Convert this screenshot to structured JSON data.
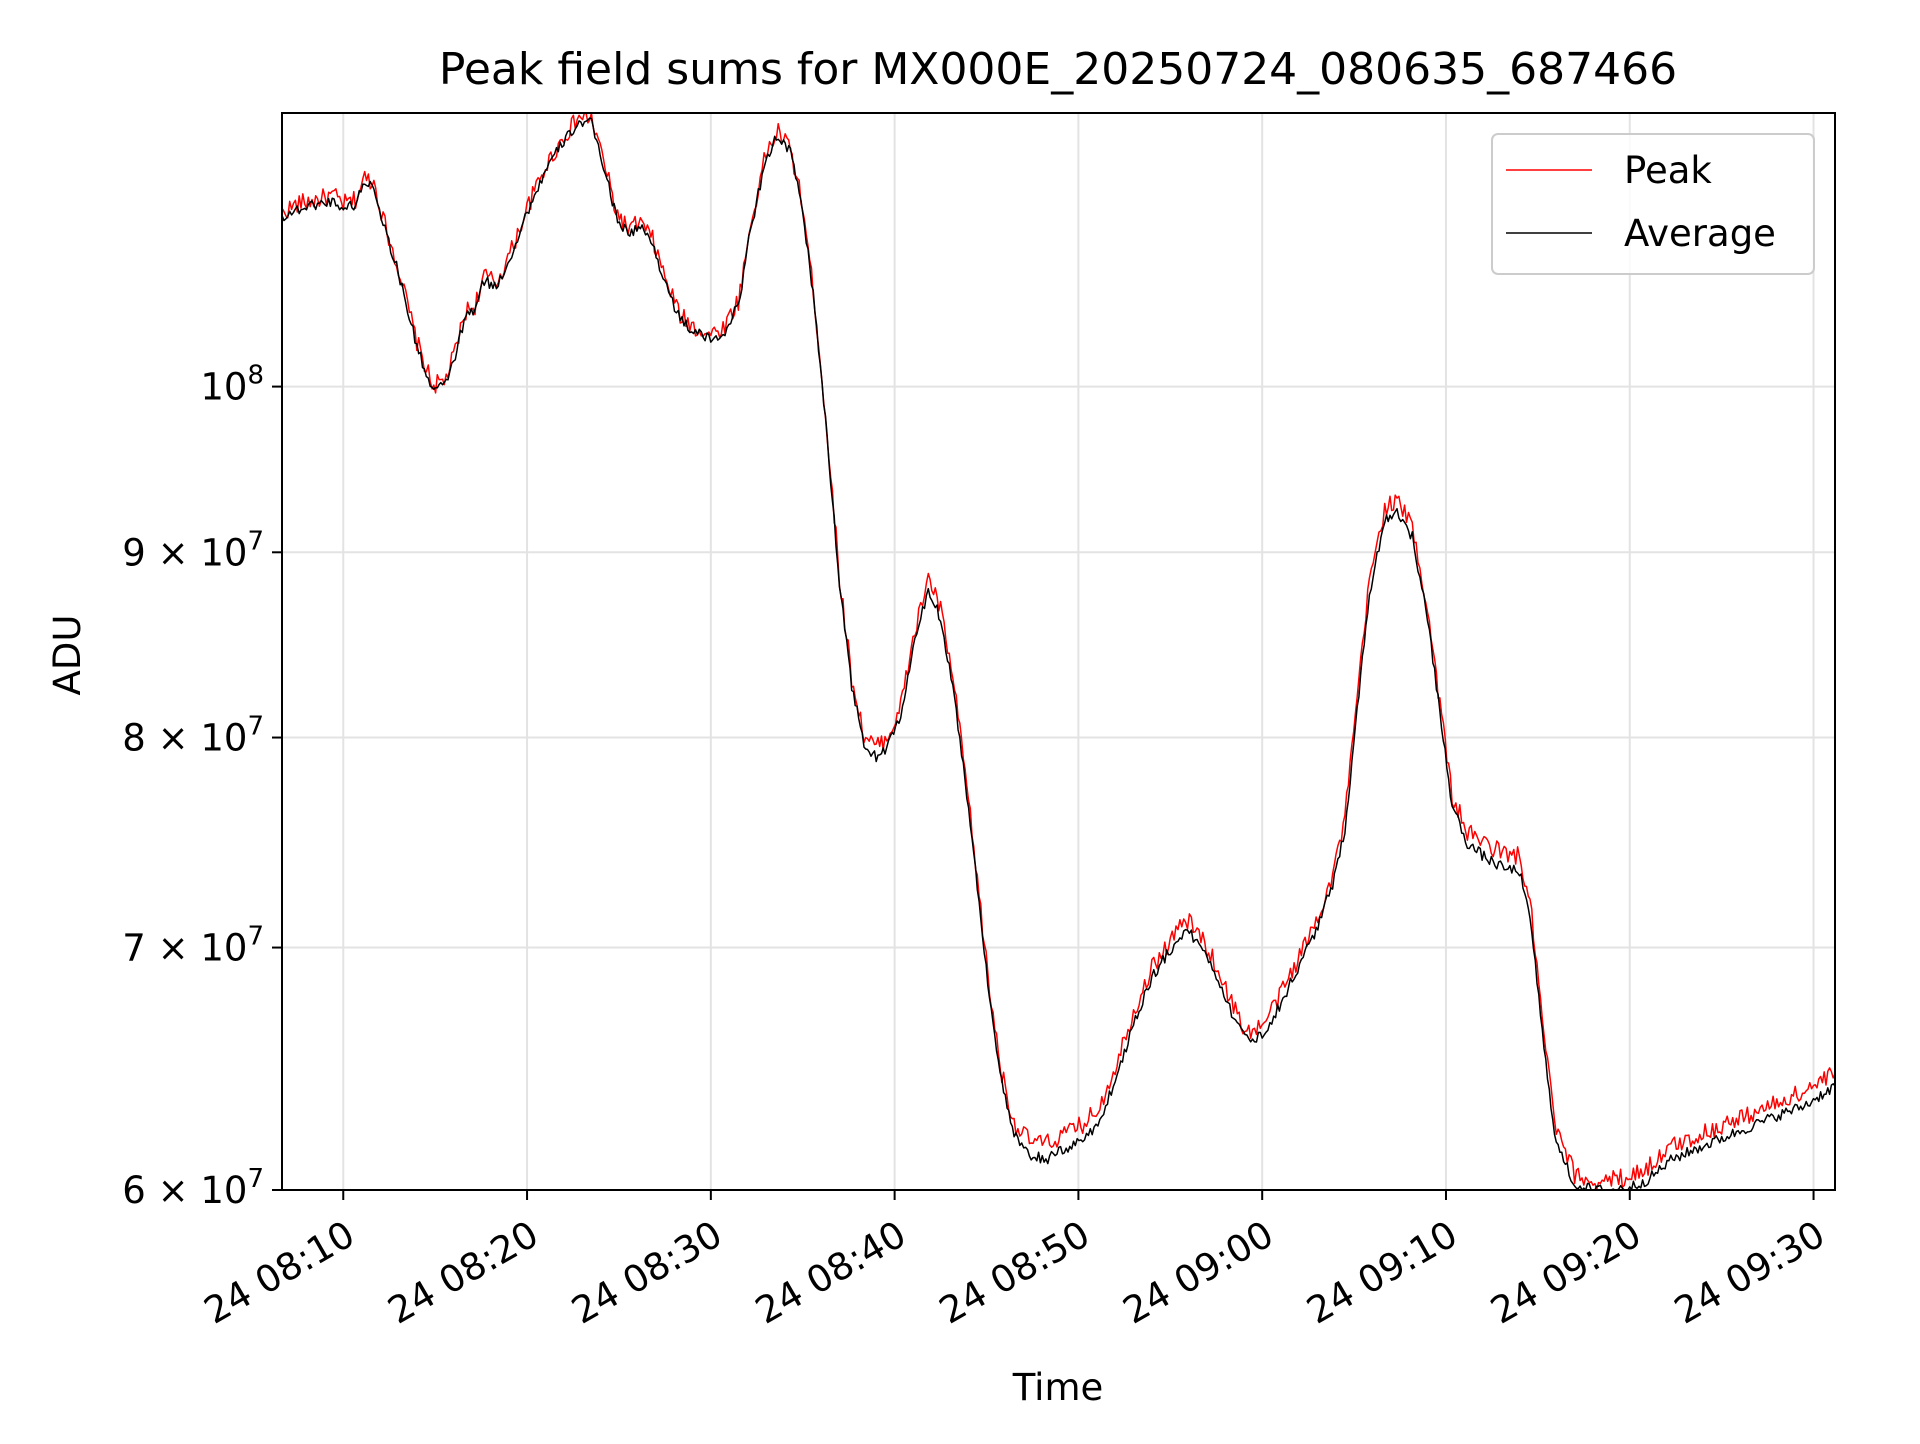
{
  "chart_data": {
    "type": "line",
    "title": "Peak field sums for MX000E_20250724_080635_687466",
    "xlabel": "Time",
    "ylabel": "ADU",
    "yscale": "log",
    "grid": true,
    "legend_position": "top-right",
    "xlim": [
      "2025-07-24 08:06:40",
      "2025-07-24 09:31:10"
    ],
    "ylim": [
      60000000,
      119000000
    ],
    "x_ticks": [
      "2025-07-24 08:10",
      "2025-07-24 08:20",
      "2025-07-24 08:30",
      "2025-07-24 08:40",
      "2025-07-24 08:50",
      "2025-07-24 09:00",
      "2025-07-24 09:10",
      "2025-07-24 09:20",
      "2025-07-24 09:30"
    ],
    "x_tick_labels": [
      "24 08:10",
      "24 08:20",
      "24 08:30",
      "24 08:40",
      "24 08:50",
      "24 09:00",
      "24 09:10",
      "24 09:20",
      "24 09:30"
    ],
    "y_ticks": [
      60000000,
      70000000,
      80000000,
      90000000,
      100000000
    ],
    "y_tick_labels": [
      {
        "base": "6 × 10",
        "exp": "7"
      },
      {
        "base": "7 × 10",
        "exp": "7"
      },
      {
        "base": "8 × 10",
        "exp": "7"
      },
      {
        "base": "9 × 10",
        "exp": "7"
      },
      {
        "base": "10",
        "exp": "8"
      }
    ],
    "series": [
      {
        "name": "Peak",
        "color": "#ff0000",
        "jitter": 0.006,
        "points": [
          [
            "2025-07-24 08:06:40",
            111700000
          ],
          [
            "2025-07-24 08:07:30",
            112300000
          ],
          [
            "2025-07-24 08:08:30",
            112600000
          ],
          [
            "2025-07-24 08:09:30",
            112900000
          ],
          [
            "2025-07-24 08:10:00",
            112300000
          ],
          [
            "2025-07-24 08:10:40",
            112600000
          ],
          [
            "2025-07-24 08:11:10",
            114200000
          ],
          [
            "2025-07-24 08:11:40",
            113900000
          ],
          [
            "2025-07-24 08:12:10",
            111300000
          ],
          [
            "2025-07-24 08:13:00",
            107800000
          ],
          [
            "2025-07-24 08:14:00",
            102900000
          ],
          [
            "2025-07-24 08:14:50",
            100100000
          ],
          [
            "2025-07-24 08:15:30",
            100300000
          ],
          [
            "2025-07-24 08:16:00",
            101900000
          ],
          [
            "2025-07-24 08:16:40",
            104900000
          ],
          [
            "2025-07-24 08:17:10",
            105300000
          ],
          [
            "2025-07-24 08:17:40",
            107300000
          ],
          [
            "2025-07-24 08:18:20",
            106800000
          ],
          [
            "2025-07-24 08:19:10",
            109100000
          ],
          [
            "2025-07-24 08:20:00",
            112000000
          ],
          [
            "2025-07-24 08:21:00",
            115000000
          ],
          [
            "2025-07-24 08:22:00",
            117200000
          ],
          [
            "2025-07-24 08:22:50",
            118700000
          ],
          [
            "2025-07-24 08:23:30",
            118600000
          ],
          [
            "2025-07-24 08:24:10",
            115500000
          ],
          [
            "2025-07-24 08:24:50",
            111800000
          ],
          [
            "2025-07-24 08:25:30",
            110500000
          ],
          [
            "2025-07-24 08:26:10",
            111000000
          ],
          [
            "2025-07-24 08:26:50",
            109800000
          ],
          [
            "2025-07-24 08:27:30",
            107200000
          ],
          [
            "2025-07-24 08:28:20",
            104600000
          ],
          [
            "2025-07-24 08:29:10",
            103800000
          ],
          [
            "2025-07-24 08:30:00",
            103400000
          ],
          [
            "2025-07-24 08:30:40",
            103800000
          ],
          [
            "2025-07-24 08:31:30",
            105600000
          ],
          [
            "2025-07-24 08:32:10",
            110800000
          ],
          [
            "2025-07-24 08:33:00",
            116000000
          ],
          [
            "2025-07-24 08:33:40",
            117600000
          ],
          [
            "2025-07-24 08:34:20",
            116300000
          ],
          [
            "2025-07-24 08:35:00",
            112200000
          ],
          [
            "2025-07-24 08:35:40",
            105300000
          ],
          [
            "2025-07-24 08:36:20",
            97000000
          ],
          [
            "2025-07-24 08:37:00",
            88600000
          ],
          [
            "2025-07-24 08:37:40",
            83100000
          ],
          [
            "2025-07-24 08:38:20",
            80100000
          ],
          [
            "2025-07-24 08:39:00",
            79500000
          ],
          [
            "2025-07-24 08:39:40",
            80100000
          ],
          [
            "2025-07-24 08:40:20",
            81600000
          ],
          [
            "2025-07-24 08:41:00",
            85100000
          ],
          [
            "2025-07-24 08:41:50",
            88600000
          ],
          [
            "2025-07-24 08:42:30",
            86800000
          ],
          [
            "2025-07-24 08:43:10",
            83100000
          ],
          [
            "2025-07-24 08:43:50",
            78300000
          ],
          [
            "2025-07-24 08:44:30",
            73100000
          ],
          [
            "2025-07-24 08:45:10",
            68100000
          ],
          [
            "2025-07-24 08:45:50",
            64600000
          ],
          [
            "2025-07-24 08:46:30",
            62600000
          ],
          [
            "2025-07-24 08:47:20",
            61900000
          ],
          [
            "2025-07-24 08:48:20",
            61800000
          ],
          [
            "2025-07-24 08:49:20",
            62200000
          ],
          [
            "2025-07-24 08:50:20",
            62600000
          ],
          [
            "2025-07-24 08:51:10",
            63300000
          ],
          [
            "2025-07-24 08:52:00",
            64900000
          ],
          [
            "2025-07-24 08:53:00",
            67200000
          ],
          [
            "2025-07-24 08:54:00",
            69100000
          ],
          [
            "2025-07-24 08:55:00",
            70300000
          ],
          [
            "2025-07-24 08:55:50",
            71300000
          ],
          [
            "2025-07-24 08:56:40",
            70500000
          ],
          [
            "2025-07-24 08:57:30",
            69200000
          ],
          [
            "2025-07-24 08:58:20",
            67600000
          ],
          [
            "2025-07-24 08:59:10",
            66300000
          ],
          [
            "2025-07-24 09:00:00",
            66600000
          ],
          [
            "2025-07-24 09:00:50",
            67700000
          ],
          [
            "2025-07-24 09:01:50",
            69300000
          ],
          [
            "2025-07-24 09:02:50",
            71000000
          ],
          [
            "2025-07-24 09:03:50",
            73300000
          ],
          [
            "2025-07-24 09:04:30",
            76000000
          ],
          [
            "2025-07-24 09:05:10",
            82000000
          ],
          [
            "2025-07-24 09:05:50",
            88400000
          ],
          [
            "2025-07-24 09:06:40",
            92600000
          ],
          [
            "2025-07-24 09:07:20",
            93000000
          ],
          [
            "2025-07-24 09:08:10",
            91500000
          ],
          [
            "2025-07-24 09:09:00",
            86800000
          ],
          [
            "2025-07-24 09:09:40",
            81800000
          ],
          [
            "2025-07-24 09:10:20",
            77100000
          ],
          [
            "2025-07-24 09:11:10",
            75300000
          ],
          [
            "2025-07-24 09:12:10",
            74800000
          ],
          [
            "2025-07-24 09:13:10",
            74300000
          ],
          [
            "2025-07-24 09:14:00",
            74200000
          ],
          [
            "2025-07-24 09:14:40",
            71400000
          ],
          [
            "2025-07-24 09:15:20",
            66100000
          ],
          [
            "2025-07-24 09:16:00",
            62300000
          ],
          [
            "2025-07-24 09:17:00",
            60600000
          ],
          [
            "2025-07-24 09:18:00",
            60300000
          ],
          [
            "2025-07-24 09:19:00",
            60400000
          ],
          [
            "2025-07-24 09:20:00",
            60500000
          ],
          [
            "2025-07-24 09:21:00",
            60900000
          ],
          [
            "2025-07-24 09:22:20",
            61700000
          ],
          [
            "2025-07-24 09:24:00",
            62200000
          ],
          [
            "2025-07-24 09:26:00",
            62800000
          ],
          [
            "2025-07-24 09:28:00",
            63400000
          ],
          [
            "2025-07-24 09:29:30",
            63900000
          ],
          [
            "2025-07-24 09:31:10",
            64600000
          ]
        ]
      },
      {
        "name": "Average",
        "color": "#000000",
        "jitter": 0.0035,
        "points": [
          [
            "2025-07-24 08:06:40",
            111400000
          ],
          [
            "2025-07-24 08:07:30",
            111900000
          ],
          [
            "2025-07-24 08:08:30",
            112300000
          ],
          [
            "2025-07-24 08:09:30",
            112500000
          ],
          [
            "2025-07-24 08:10:00",
            112000000
          ],
          [
            "2025-07-24 08:10:40",
            112300000
          ],
          [
            "2025-07-24 08:11:10",
            113900000
          ],
          [
            "2025-07-24 08:11:40",
            113600000
          ],
          [
            "2025-07-24 08:12:10",
            111000000
          ],
          [
            "2025-07-24 08:13:00",
            107500000
          ],
          [
            "2025-07-24 08:14:00",
            102600000
          ],
          [
            "2025-07-24 08:14:50",
            99800000
          ],
          [
            "2025-07-24 08:15:30",
            100000000
          ],
          [
            "2025-07-24 08:16:00",
            101600000
          ],
          [
            "2025-07-24 08:16:40",
            104600000
          ],
          [
            "2025-07-24 08:17:10",
            105000000
          ],
          [
            "2025-07-24 08:17:40",
            107000000
          ],
          [
            "2025-07-24 08:18:20",
            106500000
          ],
          [
            "2025-07-24 08:19:10",
            108800000
          ],
          [
            "2025-07-24 08:20:00",
            111700000
          ],
          [
            "2025-07-24 08:21:00",
            114700000
          ],
          [
            "2025-07-24 08:22:00",
            116900000
          ],
          [
            "2025-07-24 08:22:50",
            118300000
          ],
          [
            "2025-07-24 08:23:30",
            118200000
          ],
          [
            "2025-07-24 08:24:10",
            115100000
          ],
          [
            "2025-07-24 08:24:50",
            111500000
          ],
          [
            "2025-07-24 08:25:30",
            110200000
          ],
          [
            "2025-07-24 08:26:10",
            110700000
          ],
          [
            "2025-07-24 08:26:50",
            109500000
          ],
          [
            "2025-07-24 08:27:30",
            106900000
          ],
          [
            "2025-07-24 08:28:20",
            104300000
          ],
          [
            "2025-07-24 08:29:10",
            103500000
          ],
          [
            "2025-07-24 08:30:00",
            103000000
          ],
          [
            "2025-07-24 08:30:40",
            103400000
          ],
          [
            "2025-07-24 08:31:30",
            105300000
          ],
          [
            "2025-07-24 08:32:10",
            110500000
          ],
          [
            "2025-07-24 08:33:00",
            115700000
          ],
          [
            "2025-07-24 08:33:40",
            117300000
          ],
          [
            "2025-07-24 08:34:20",
            116000000
          ],
          [
            "2025-07-24 08:35:00",
            111900000
          ],
          [
            "2025-07-24 08:35:40",
            105000000
          ],
          [
            "2025-07-24 08:36:20",
            96700000
          ],
          [
            "2025-07-24 08:37:00",
            88300000
          ],
          [
            "2025-07-24 08:37:40",
            82700000
          ],
          [
            "2025-07-24 08:38:20",
            79600000
          ],
          [
            "2025-07-24 08:39:00",
            79000000
          ],
          [
            "2025-07-24 08:39:40",
            79600000
          ],
          [
            "2025-07-24 08:40:20",
            81100000
          ],
          [
            "2025-07-24 08:41:00",
            84600000
          ],
          [
            "2025-07-24 08:41:50",
            87900000
          ],
          [
            "2025-07-24 08:42:30",
            86300000
          ],
          [
            "2025-07-24 08:43:10",
            82700000
          ],
          [
            "2025-07-24 08:43:50",
            77900000
          ],
          [
            "2025-07-24 08:44:30",
            72800000
          ],
          [
            "2025-07-24 08:45:10",
            67800000
          ],
          [
            "2025-07-24 08:45:50",
            64200000
          ],
          [
            "2025-07-24 08:46:30",
            62100000
          ],
          [
            "2025-07-24 08:47:20",
            61300000
          ],
          [
            "2025-07-24 08:48:20",
            61200000
          ],
          [
            "2025-07-24 08:49:20",
            61600000
          ],
          [
            "2025-07-24 08:50:20",
            62000000
          ],
          [
            "2025-07-24 08:51:10",
            62700000
          ],
          [
            "2025-07-24 08:52:00",
            64300000
          ],
          [
            "2025-07-24 08:53:00",
            66700000
          ],
          [
            "2025-07-24 08:54:00",
            68700000
          ],
          [
            "2025-07-24 08:55:00",
            69900000
          ],
          [
            "2025-07-24 08:55:50",
            70800000
          ],
          [
            "2025-07-24 08:56:40",
            70100000
          ],
          [
            "2025-07-24 08:57:30",
            68800000
          ],
          [
            "2025-07-24 08:58:20",
            67200000
          ],
          [
            "2025-07-24 08:59:10",
            66000000
          ],
          [
            "2025-07-24 09:00:00",
            66200000
          ],
          [
            "2025-07-24 09:00:50",
            67300000
          ],
          [
            "2025-07-24 09:01:50",
            68900000
          ],
          [
            "2025-07-24 09:02:50",
            70600000
          ],
          [
            "2025-07-24 09:03:50",
            72800000
          ],
          [
            "2025-07-24 09:04:30",
            75500000
          ],
          [
            "2025-07-24 09:05:10",
            81400000
          ],
          [
            "2025-07-24 09:05:50",
            87700000
          ],
          [
            "2025-07-24 09:06:40",
            91900000
          ],
          [
            "2025-07-24 09:07:20",
            92400000
          ],
          [
            "2025-07-24 09:08:10",
            90900000
          ],
          [
            "2025-07-24 09:09:00",
            86200000
          ],
          [
            "2025-07-24 09:09:40",
            81300000
          ],
          [
            "2025-07-24 09:10:20",
            76600000
          ],
          [
            "2025-07-24 09:11:10",
            74800000
          ],
          [
            "2025-07-24 09:12:10",
            74100000
          ],
          [
            "2025-07-24 09:13:10",
            73600000
          ],
          [
            "2025-07-24 09:14:00",
            73500000
          ],
          [
            "2025-07-24 09:14:40",
            70800000
          ],
          [
            "2025-07-24 09:15:20",
            65600000
          ],
          [
            "2025-07-24 09:16:00",
            61800000
          ],
          [
            "2025-07-24 09:17:00",
            60200000
          ],
          [
            "2025-07-24 09:18:00",
            60000000
          ],
          [
            "2025-07-24 09:19:00",
            60000000
          ],
          [
            "2025-07-24 09:20:00",
            60100000
          ],
          [
            "2025-07-24 09:21:00",
            60400000
          ],
          [
            "2025-07-24 09:22:20",
            61200000
          ],
          [
            "2025-07-24 09:24:00",
            61700000
          ],
          [
            "2025-07-24 09:26:00",
            62300000
          ],
          [
            "2025-07-24 09:28:00",
            62900000
          ],
          [
            "2025-07-24 09:29:30",
            63300000
          ],
          [
            "2025-07-24 09:31:10",
            64100000
          ]
        ]
      }
    ]
  }
}
